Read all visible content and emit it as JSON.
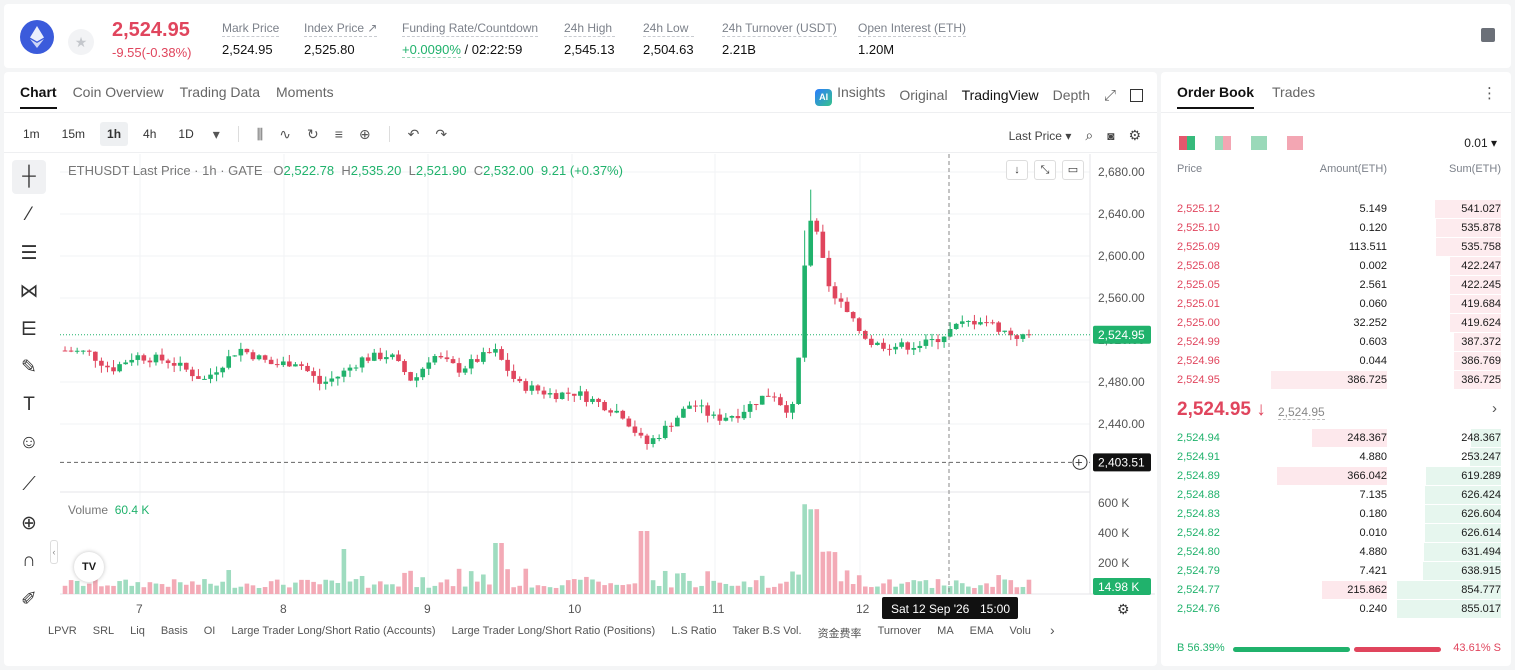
{
  "header": {
    "price": "2,524.95",
    "change": "-9.55(-0.38%)",
    "stats": [
      {
        "label": "Mark Price",
        "value": "2,524.95"
      },
      {
        "label": "Index Price ↗",
        "value": "2,525.80"
      },
      {
        "label": "Funding Rate/Countdown",
        "value_green": "+0.0090%",
        "value": " / 02:22:59"
      },
      {
        "label": "24h High",
        "value": "2,545.13"
      },
      {
        "label": "24h Low",
        "value": "2,504.63"
      },
      {
        "label": "24h Turnover (USDT)",
        "value": "2.21B"
      },
      {
        "label": "Open Interest (ETH)",
        "value": "1.20M"
      }
    ]
  },
  "chart_tabs": [
    "Chart",
    "Coin Overview",
    "Trading Data",
    "Moments"
  ],
  "view_tabs": {
    "ai_badge": "AI",
    "insights": "Insights",
    "original": "Original",
    "tradingview": "TradingView",
    "depth": "Depth"
  },
  "timeframes": [
    "1m",
    "15m",
    "1h",
    "4h",
    "1D"
  ],
  "price_type": "Last Price ▾",
  "legend": {
    "symbol": "ETHUSDT Last Price · 1h · GATE",
    "o_label": "O",
    "o": "2,522.78",
    "h_label": "H",
    "h": "2,535.20",
    "l_label": "L",
    "l": "2,521.90",
    "c_label": "C",
    "c": "2,532.00",
    "chg": "9.21 (+0.37%)"
  },
  "volume": {
    "label": "Volume",
    "value": "60.4 K"
  },
  "tv_logo": "TV",
  "chart_data": {
    "type": "candlestick",
    "x_ticks": [
      "7",
      "8",
      "9",
      "10",
      "11",
      "12"
    ],
    "price_axis": [
      "2,680.00",
      "2,640.00",
      "2,600.00",
      "2,560.00",
      "2,520.00",
      "2,480.00",
      "2,440.00"
    ],
    "volume_axis": [
      "600 K",
      "400 K",
      "200 K"
    ],
    "last_price_label": "2,524.95",
    "last_price": 2524.95,
    "crosshair_price": "2,403.51",
    "crosshair_value": 2403.51,
    "crosshair_time": "Sat 12 Sep '26",
    "crosshair_hour": "15:00",
    "volume_last": "14.98 K",
    "ylim": [
      2404,
      2680
    ],
    "vol_max": 600
  },
  "indicators": [
    "LPVR",
    "SRL",
    "Liq",
    "Basis",
    "OI",
    "Large Trader Long/Short Ratio (Accounts)",
    "Large Trader Long/Short Ratio (Positions)",
    "L.S Ratio",
    "Taker B.S Vol.",
    "资金费率",
    "Turnover",
    "MA",
    "EMA",
    "Volu"
  ],
  "orderbook": {
    "tabs": [
      "Order Book",
      "Trades"
    ],
    "precision": "0.01 ▾",
    "cols": [
      "Price",
      "Amount(ETH)",
      "Sum(ETH)"
    ],
    "asks": [
      [
        "2,525.12",
        "5.149",
        "541.027"
      ],
      [
        "2,525.10",
        "0.120",
        "535.878"
      ],
      [
        "2,525.09",
        "113.511",
        "535.758"
      ],
      [
        "2,525.08",
        "0.002",
        "422.247"
      ],
      [
        "2,525.05",
        "2.561",
        "422.245"
      ],
      [
        "2,525.01",
        "0.060",
        "419.684"
      ],
      [
        "2,525.00",
        "32.252",
        "419.624"
      ],
      [
        "2,524.99",
        "0.603",
        "387.372"
      ],
      [
        "2,524.96",
        "0.044",
        "386.769"
      ],
      [
        "2,524.95",
        "386.725",
        "386.725"
      ]
    ],
    "mid": "2,524.95 ↓",
    "mid_sub": "2,524.95",
    "bids": [
      [
        "2,524.94",
        "248.367",
        "248.367"
      ],
      [
        "2,524.91",
        "4.880",
        "253.247"
      ],
      [
        "2,524.89",
        "366.042",
        "619.289"
      ],
      [
        "2,524.88",
        "7.135",
        "626.424"
      ],
      [
        "2,524.83",
        "0.180",
        "626.604"
      ],
      [
        "2,524.82",
        "0.010",
        "626.614"
      ],
      [
        "2,524.80",
        "4.880",
        "631.494"
      ],
      [
        "2,524.79",
        "7.421",
        "638.915"
      ],
      [
        "2,524.77",
        "215.862",
        "854.777"
      ],
      [
        "2,524.76",
        "0.240",
        "855.017"
      ]
    ],
    "buy_ratio": "B 56.39%",
    "sell_ratio": "43.61% S",
    "buy_pct": 56.39
  },
  "colors": {
    "up": "#20b26c",
    "down": "#e0455d"
  }
}
